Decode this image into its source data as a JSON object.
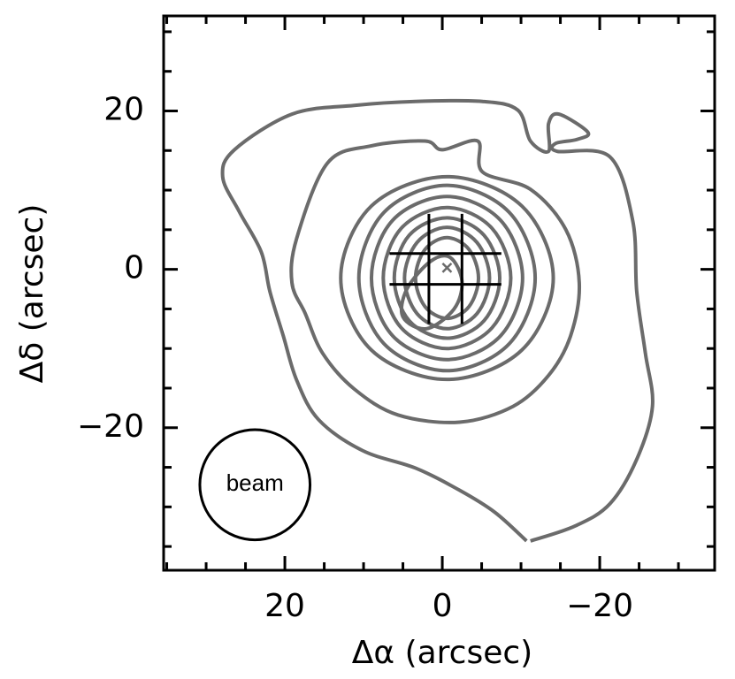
{
  "chart_data": {
    "type": "contour",
    "xlabel": "Δα (arcsec)",
    "ylabel": "Δδ (arcsec)",
    "xlim": [
      35.4,
      -34.6
    ],
    "ylim": [
      -38,
      32
    ],
    "xticks": [
      20,
      0,
      {
        "value": -20,
        "label": "−20"
      }
    ],
    "yticks": [
      20,
      0,
      {
        "value": -20,
        "label": "−20"
      }
    ],
    "minor_xticks": [
      35,
      30,
      25,
      15,
      10,
      5,
      -5,
      -10,
      -15,
      -25,
      -30
    ],
    "minor_yticks": [
      30,
      25,
      15,
      10,
      5,
      -5,
      -10,
      -15,
      -25,
      -30,
      -35
    ],
    "color": "#6b6b6b",
    "contours": [
      {
        "closed": false,
        "x": [
          -10.7,
          -6.7,
          -2.2,
          3.4,
          10.1,
          15.7,
          18.5,
          20.2,
          21.9,
          23.0,
          25.8,
          27.9,
          26.4,
          19.1,
          11.2,
          3.4,
          -5.1,
          -9.6,
          -11.2,
          -13.5,
          -13.5,
          -14.8,
          -18.5,
          -17.1,
          -14.4,
          -14.6,
          -21.3,
          -24.2,
          -24.7,
          -25.8,
          -26.7,
          -24.7,
          -21.3,
          -16.9,
          -11.2
        ],
        "y": [
          -34.3,
          -30.7,
          -27.9,
          -25.1,
          -22.9,
          -19.0,
          -14.0,
          -8.4,
          -2.8,
          2.2,
          7.3,
          11.7,
          15.1,
          19.6,
          20.7,
          21.2,
          21.2,
          20.1,
          16.2,
          14.9,
          18.4,
          19.6,
          17.3,
          16.4,
          15.9,
          14.9,
          14.2,
          6.1,
          -2.8,
          -10.6,
          -17.3,
          -24.0,
          -29.6,
          -32.4,
          -34.3
        ]
      },
      {
        "closed": true,
        "x": [
          18.5,
          14.6,
          9.0,
          2.2,
          0,
          -4.5,
          -5.1,
          -11.2,
          -15.7,
          -17.4,
          -16.3,
          -13.5,
          -9.0,
          -2.2,
          5.6,
          11.2,
          15.2,
          17.4,
          19.1
        ],
        "y": [
          3.9,
          13.4,
          15.6,
          16.2,
          15.1,
          16.2,
          12.3,
          10.1,
          5.0,
          -1.7,
          -8.4,
          -13.4,
          -17.3,
          -19.3,
          -18.4,
          -15.1,
          -10.6,
          -5.6,
          -1.7
        ]
      },
      {
        "closed": true,
        "x": [
          -14.1,
          -10.1,
          -0.6,
          9.0,
          12.9,
          9.0,
          -0.6,
          -10.1
        ],
        "y": [
          -1.1,
          8.0,
          11.7,
          8.0,
          -1.1,
          -10.2,
          -13.9,
          -10.2
        ]
      },
      {
        "closed": true,
        "x": [
          -11.8,
          -8.5,
          -0.6,
          7.4,
          10.6,
          7.4,
          -0.6,
          -8.5
        ],
        "y": [
          -1.1,
          7.2,
          10.6,
          7.2,
          -1.1,
          -9.4,
          -12.8,
          -9.4
        ]
      },
      {
        "closed": true,
        "x": [
          -10.2,
          -7.4,
          -0.6,
          6.3,
          9.0,
          6.3,
          -0.6,
          -7.4
        ],
        "y": [
          -1.1,
          6.2,
          9.2,
          6.2,
          -1.1,
          -8.4,
          -11.4,
          -8.4
        ]
      },
      {
        "closed": true,
        "x": [
          -8.7,
          -6.3,
          -0.6,
          5.2,
          7.5,
          5.2,
          -0.6,
          -6.3
        ],
        "y": [
          -1.1,
          5.2,
          7.8,
          5.2,
          -1.1,
          -7.4,
          -10.0,
          -7.4
        ]
      },
      {
        "closed": true,
        "x": [
          -7.3,
          -5.3,
          -0.6,
          4.2,
          6.1,
          4.2,
          -0.6,
          -5.3
        ],
        "y": [
          -1.1,
          4.3,
          6.5,
          4.3,
          -1.1,
          -6.5,
          -8.7,
          -6.5
        ]
      },
      {
        "closed": true,
        "x": [
          -6.0,
          -4.4,
          -0.6,
          3.2,
          4.8,
          3.2,
          -0.6,
          -4.4
        ],
        "y": [
          -1.1,
          3.4,
          5.3,
          3.4,
          -1.1,
          -5.6,
          -7.5,
          -5.6
        ]
      },
      {
        "closed": true,
        "x": [
          -4.6,
          -3.4,
          -0.6,
          2.2,
          3.4,
          2.2,
          -0.6,
          -3.4
        ],
        "y": [
          -1.1,
          2.5,
          4.0,
          2.5,
          -1.1,
          -4.7,
          -6.2,
          -4.7
        ]
      },
      {
        "closed": true,
        "x": [
          -2.5,
          -1.0,
          1.5,
          4.5,
          5.0,
          2.0,
          -1.5
        ],
        "y": [
          -1.5,
          1.5,
          1.0,
          -2.5,
          -6.0,
          -7.5,
          -5.0
        ]
      }
    ],
    "cross_lines": [
      {
        "x": [
          1.7,
          1.7
        ],
        "y": [
          7.0,
          -6.9
        ]
      },
      {
        "x": [
          -2.5,
          -2.5
        ],
        "y": [
          7.0,
          -6.9
        ]
      },
      {
        "x": [
          6.7,
          -7.5
        ],
        "y": [
          2.0,
          2.0
        ]
      },
      {
        "x": [
          6.7,
          -7.5
        ],
        "y": [
          -1.9,
          -1.9
        ]
      }
    ],
    "peak": {
      "x": -0.6,
      "y": 0.2
    },
    "beam": {
      "label": "beam",
      "x": 23.8,
      "y": -27.2,
      "radius": 7.0
    }
  }
}
